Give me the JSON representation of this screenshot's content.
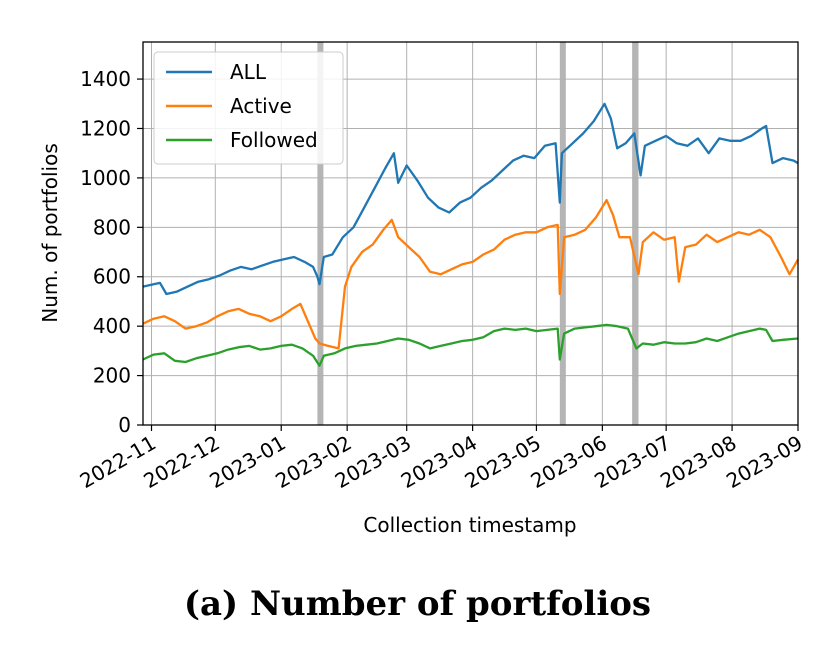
{
  "caption": "(a)  Number of portfolios",
  "chart_data": {
    "type": "line",
    "xlabel": "Collection timestamp",
    "ylabel": "Num. of portfolios",
    "ylim": [
      0,
      1550
    ],
    "xlim": [
      "2022-10-28",
      "2023-09-01"
    ],
    "grid": true,
    "legend_position": "top-left",
    "y_ticks": [
      0,
      200,
      400,
      600,
      800,
      1000,
      1200,
      1400
    ],
    "x_ticks": [
      "2022-11",
      "2022-12",
      "2023-01",
      "2023-02",
      "2023-03",
      "2023-04",
      "2023-05",
      "2023-06",
      "2023-07",
      "2023-08",
      "2023-09"
    ],
    "gap_bands": [
      [
        "2023-01-18",
        "2023-01-20"
      ],
      [
        "2023-05-12",
        "2023-05-13"
      ],
      [
        "2023-06-15",
        "2023-06-18"
      ]
    ],
    "series": [
      {
        "name": "ALL",
        "color": "#1f77b4",
        "points": [
          [
            "2022-10-28",
            560
          ],
          [
            "2022-11-02",
            570
          ],
          [
            "2022-11-05",
            575
          ],
          [
            "2022-11-08",
            530
          ],
          [
            "2022-11-13",
            540
          ],
          [
            "2022-11-18",
            560
          ],
          [
            "2022-11-23",
            580
          ],
          [
            "2022-11-28",
            590
          ],
          [
            "2022-12-03",
            605
          ],
          [
            "2022-12-08",
            625
          ],
          [
            "2022-12-13",
            640
          ],
          [
            "2022-12-18",
            630
          ],
          [
            "2022-12-23",
            645
          ],
          [
            "2022-12-28",
            660
          ],
          [
            "2023-01-02",
            670
          ],
          [
            "2023-01-07",
            680
          ],
          [
            "2023-01-12",
            660
          ],
          [
            "2023-01-16",
            640
          ],
          [
            "2023-01-18",
            600
          ],
          [
            "2023-01-19",
            570
          ],
          [
            "2023-01-21",
            680
          ],
          [
            "2023-01-25",
            690
          ],
          [
            "2023-01-30",
            760
          ],
          [
            "2023-02-04",
            800
          ],
          [
            "2023-02-09",
            880
          ],
          [
            "2023-02-14",
            960
          ],
          [
            "2023-02-19",
            1040
          ],
          [
            "2023-02-23",
            1100
          ],
          [
            "2023-02-25",
            980
          ],
          [
            "2023-03-01",
            1050
          ],
          [
            "2023-03-06",
            990
          ],
          [
            "2023-03-11",
            920
          ],
          [
            "2023-03-16",
            880
          ],
          [
            "2023-03-21",
            860
          ],
          [
            "2023-03-26",
            900
          ],
          [
            "2023-03-31",
            920
          ],
          [
            "2023-04-05",
            960
          ],
          [
            "2023-04-10",
            990
          ],
          [
            "2023-04-15",
            1030
          ],
          [
            "2023-04-20",
            1070
          ],
          [
            "2023-04-25",
            1090
          ],
          [
            "2023-04-30",
            1080
          ],
          [
            "2023-05-05",
            1130
          ],
          [
            "2023-05-10",
            1140
          ],
          [
            "2023-05-12",
            900
          ],
          [
            "2023-05-13",
            1100
          ],
          [
            "2023-05-18",
            1140
          ],
          [
            "2023-05-23",
            1180
          ],
          [
            "2023-05-28",
            1230
          ],
          [
            "2023-06-02",
            1300
          ],
          [
            "2023-06-05",
            1240
          ],
          [
            "2023-06-08",
            1120
          ],
          [
            "2023-06-12",
            1140
          ],
          [
            "2023-06-16",
            1180
          ],
          [
            "2023-06-19",
            1010
          ],
          [
            "2023-06-21",
            1130
          ],
          [
            "2023-06-26",
            1150
          ],
          [
            "2023-07-01",
            1170
          ],
          [
            "2023-07-06",
            1140
          ],
          [
            "2023-07-11",
            1130
          ],
          [
            "2023-07-16",
            1160
          ],
          [
            "2023-07-21",
            1100
          ],
          [
            "2023-07-26",
            1160
          ],
          [
            "2023-07-31",
            1150
          ],
          [
            "2023-08-05",
            1150
          ],
          [
            "2023-08-10",
            1170
          ],
          [
            "2023-08-15",
            1200
          ],
          [
            "2023-08-17",
            1210
          ],
          [
            "2023-08-20",
            1060
          ],
          [
            "2023-08-25",
            1080
          ],
          [
            "2023-08-30",
            1070
          ],
          [
            "2023-09-01",
            1060
          ]
        ]
      },
      {
        "name": "Active",
        "color": "#ff7f0e",
        "points": [
          [
            "2022-10-28",
            410
          ],
          [
            "2022-11-02",
            430
          ],
          [
            "2022-11-07",
            440
          ],
          [
            "2022-11-12",
            420
          ],
          [
            "2022-11-17",
            390
          ],
          [
            "2022-11-22",
            400
          ],
          [
            "2022-11-27",
            415
          ],
          [
            "2022-12-02",
            440
          ],
          [
            "2022-12-07",
            460
          ],
          [
            "2022-12-12",
            470
          ],
          [
            "2022-12-17",
            450
          ],
          [
            "2022-12-22",
            440
          ],
          [
            "2022-12-27",
            420
          ],
          [
            "2023-01-01",
            440
          ],
          [
            "2023-01-06",
            470
          ],
          [
            "2023-01-10",
            490
          ],
          [
            "2023-01-14",
            410
          ],
          [
            "2023-01-17",
            350
          ],
          [
            "2023-01-19",
            330
          ],
          [
            "2023-01-23",
            320
          ],
          [
            "2023-01-28",
            310
          ],
          [
            "2023-01-31",
            560
          ],
          [
            "2023-02-03",
            640
          ],
          [
            "2023-02-08",
            700
          ],
          [
            "2023-02-13",
            730
          ],
          [
            "2023-02-18",
            790
          ],
          [
            "2023-02-22",
            830
          ],
          [
            "2023-02-25",
            760
          ],
          [
            "2023-03-02",
            720
          ],
          [
            "2023-03-07",
            680
          ],
          [
            "2023-03-12",
            620
          ],
          [
            "2023-03-17",
            610
          ],
          [
            "2023-03-22",
            630
          ],
          [
            "2023-03-27",
            650
          ],
          [
            "2023-04-01",
            660
          ],
          [
            "2023-04-06",
            690
          ],
          [
            "2023-04-11",
            710
          ],
          [
            "2023-04-16",
            750
          ],
          [
            "2023-04-21",
            770
          ],
          [
            "2023-04-26",
            780
          ],
          [
            "2023-05-01",
            780
          ],
          [
            "2023-05-06",
            800
          ],
          [
            "2023-05-11",
            810
          ],
          [
            "2023-05-12",
            530
          ],
          [
            "2023-05-14",
            760
          ],
          [
            "2023-05-19",
            770
          ],
          [
            "2023-05-24",
            790
          ],
          [
            "2023-05-29",
            840
          ],
          [
            "2023-06-03",
            910
          ],
          [
            "2023-06-06",
            850
          ],
          [
            "2023-06-09",
            760
          ],
          [
            "2023-06-14",
            760
          ],
          [
            "2023-06-18",
            610
          ],
          [
            "2023-06-20",
            740
          ],
          [
            "2023-06-25",
            780
          ],
          [
            "2023-06-30",
            750
          ],
          [
            "2023-07-05",
            760
          ],
          [
            "2023-07-07",
            580
          ],
          [
            "2023-07-10",
            720
          ],
          [
            "2023-07-15",
            730
          ],
          [
            "2023-07-20",
            770
          ],
          [
            "2023-07-25",
            740
          ],
          [
            "2023-07-30",
            760
          ],
          [
            "2023-08-04",
            780
          ],
          [
            "2023-08-09",
            770
          ],
          [
            "2023-08-14",
            790
          ],
          [
            "2023-08-19",
            760
          ],
          [
            "2023-08-24",
            680
          ],
          [
            "2023-08-28",
            610
          ],
          [
            "2023-09-01",
            670
          ]
        ]
      },
      {
        "name": "Followed",
        "color": "#2ca02c",
        "points": [
          [
            "2022-10-28",
            265
          ],
          [
            "2022-11-02",
            285
          ],
          [
            "2022-11-07",
            290
          ],
          [
            "2022-11-12",
            260
          ],
          [
            "2022-11-17",
            255
          ],
          [
            "2022-11-22",
            270
          ],
          [
            "2022-11-27",
            280
          ],
          [
            "2022-12-02",
            290
          ],
          [
            "2022-12-07",
            305
          ],
          [
            "2022-12-12",
            315
          ],
          [
            "2022-12-17",
            320
          ],
          [
            "2022-12-22",
            305
          ],
          [
            "2022-12-27",
            310
          ],
          [
            "2023-01-01",
            320
          ],
          [
            "2023-01-06",
            325
          ],
          [
            "2023-01-11",
            310
          ],
          [
            "2023-01-16",
            280
          ],
          [
            "2023-01-19",
            240
          ],
          [
            "2023-01-21",
            280
          ],
          [
            "2023-01-26",
            290
          ],
          [
            "2023-01-31",
            310
          ],
          [
            "2023-02-05",
            320
          ],
          [
            "2023-02-10",
            325
          ],
          [
            "2023-02-15",
            330
          ],
          [
            "2023-02-20",
            340
          ],
          [
            "2023-02-25",
            350
          ],
          [
            "2023-03-02",
            345
          ],
          [
            "2023-03-07",
            330
          ],
          [
            "2023-03-12",
            310
          ],
          [
            "2023-03-17",
            320
          ],
          [
            "2023-03-22",
            330
          ],
          [
            "2023-03-27",
            340
          ],
          [
            "2023-04-01",
            345
          ],
          [
            "2023-04-06",
            355
          ],
          [
            "2023-04-11",
            380
          ],
          [
            "2023-04-16",
            390
          ],
          [
            "2023-04-21",
            385
          ],
          [
            "2023-04-26",
            390
          ],
          [
            "2023-05-01",
            380
          ],
          [
            "2023-05-06",
            385
          ],
          [
            "2023-05-11",
            390
          ],
          [
            "2023-05-12",
            265
          ],
          [
            "2023-05-14",
            370
          ],
          [
            "2023-05-19",
            390
          ],
          [
            "2023-05-24",
            395
          ],
          [
            "2023-05-29",
            400
          ],
          [
            "2023-06-03",
            405
          ],
          [
            "2023-06-08",
            400
          ],
          [
            "2023-06-13",
            390
          ],
          [
            "2023-06-17",
            310
          ],
          [
            "2023-06-20",
            330
          ],
          [
            "2023-06-25",
            325
          ],
          [
            "2023-06-30",
            335
          ],
          [
            "2023-07-05",
            330
          ],
          [
            "2023-07-10",
            330
          ],
          [
            "2023-07-15",
            335
          ],
          [
            "2023-07-20",
            350
          ],
          [
            "2023-07-25",
            340
          ],
          [
            "2023-07-30",
            355
          ],
          [
            "2023-08-04",
            370
          ],
          [
            "2023-08-09",
            380
          ],
          [
            "2023-08-14",
            390
          ],
          [
            "2023-08-17",
            385
          ],
          [
            "2023-08-20",
            340
          ],
          [
            "2023-08-25",
            345
          ],
          [
            "2023-09-01",
            350
          ]
        ]
      }
    ]
  }
}
